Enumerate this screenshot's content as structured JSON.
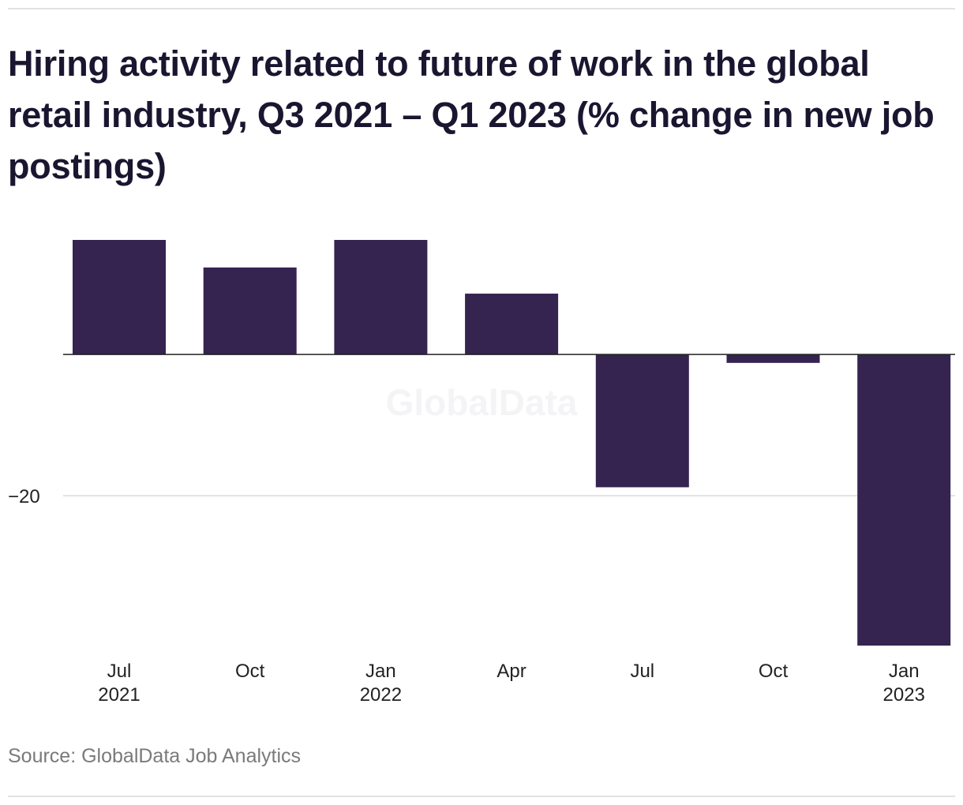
{
  "title": "Hiring activity related to future of work in the global retail industry, Q3 2021 – Q1 2023 (% change in new job postings)",
  "source": "Source: GlobalData Job Analytics",
  "watermark": "GlobalData",
  "colors": {
    "bar": "#352350",
    "grid": "#d9d9d9",
    "zero_line": "#222222",
    "rule": "#e2e2e2"
  },
  "chart_data": {
    "type": "bar",
    "categories": [
      [
        "Jul",
        "2021"
      ],
      [
        "Oct",
        ""
      ],
      [
        "Jan",
        "2022"
      ],
      [
        "Apr",
        ""
      ],
      [
        "Jul",
        ""
      ],
      [
        "Oct",
        ""
      ],
      [
        "Jan",
        "2023"
      ]
    ],
    "values": [
      16.2,
      12.3,
      16.2,
      8.6,
      -18.8,
      -1.2,
      -41.2
    ],
    "ylim": [
      -41.2,
      16.2
    ],
    "yticks": [
      -20
    ],
    "ytick_labels": [
      "−20"
    ],
    "grid": true,
    "xlabel": "",
    "ylabel": ""
  }
}
